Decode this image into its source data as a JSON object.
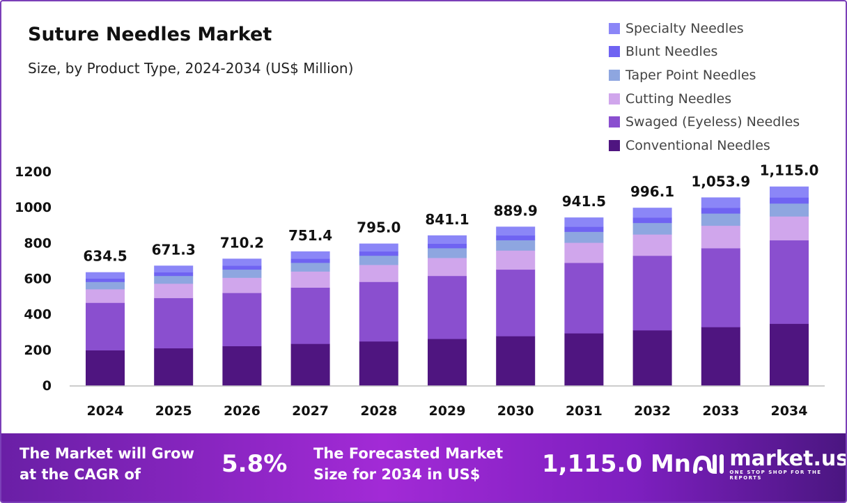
{
  "chart_data": {
    "type": "bar",
    "stacked": true,
    "title": "Suture Needles Market",
    "subtitle": "Size, by Product Type, 2024-2034 (US$ Million)",
    "categories": [
      "2024",
      "2025",
      "2026",
      "2027",
      "2028",
      "2029",
      "2030",
      "2031",
      "2032",
      "2033",
      "2034"
    ],
    "totals": [
      634.5,
      671.3,
      710.2,
      751.4,
      795.0,
      841.1,
      889.9,
      941.5,
      996.1,
      1053.9,
      1115.0
    ],
    "total_labels": [
      "634.5",
      "671.3",
      "710.2",
      "751.4",
      "795.0",
      "841.1",
      "889.9",
      "941.5",
      "996.1",
      "1,053.9",
      "1,115.0"
    ],
    "ylim": [
      0,
      1200
    ],
    "yticks": [
      "0",
      "200",
      "400",
      "600",
      "800",
      "1000",
      "1200"
    ],
    "ytick_values": [
      0,
      200,
      400,
      600,
      800,
      1000,
      1200
    ],
    "legend_position": "top-right",
    "series": [
      {
        "name": "Conventional Needles",
        "color": "#4f1580",
        "values": [
          196.7,
          208.1,
          220.2,
          232.9,
          246.5,
          260.7,
          275.9,
          291.9,
          308.8,
          326.7,
          345.7
        ]
      },
      {
        "name": "Swaged (Eyeless) Needles",
        "color": "#8a4fcf",
        "values": [
          266.5,
          281.9,
          298.3,
          315.6,
          333.9,
          353.3,
          373.8,
          395.4,
          418.4,
          442.6,
          468.3
        ]
      },
      {
        "name": "Cutting Needles",
        "color": "#d0a6ec",
        "values": [
          76.1,
          80.6,
          85.2,
          90.2,
          95.4,
          100.9,
          106.8,
          113.0,
          119.5,
          126.5,
          133.8
        ]
      },
      {
        "name": "Taper Point Needles",
        "color": "#8ea6e0",
        "values": [
          41.2,
          43.6,
          46.2,
          48.8,
          51.7,
          54.7,
          57.8,
          61.2,
          64.7,
          68.5,
          72.5
        ]
      },
      {
        "name": "Blunt Needles",
        "color": "#6f63f2",
        "values": [
          19.0,
          20.1,
          21.3,
          22.5,
          23.9,
          25.2,
          26.7,
          28.2,
          29.9,
          31.6,
          33.5
        ]
      },
      {
        "name": "Specialty Needles",
        "color": "#8b86f7",
        "values": [
          34.9,
          36.9,
          39.1,
          41.3,
          43.7,
          46.3,
          48.9,
          51.8,
          54.8,
          58.0,
          61.3
        ]
      }
    ]
  },
  "banner": {
    "cagr_text_1": "The Market will Grow",
    "cagr_text_2": "at the CAGR of",
    "cagr_value": "5.8%",
    "forecast_text_1": "The Forecasted Market",
    "forecast_text_2": "Size for 2034 in US$",
    "forecast_value": "1,115.0 Mn",
    "brand": "market.us",
    "tagline": "ONE STOP SHOP FOR THE REPORTS"
  }
}
